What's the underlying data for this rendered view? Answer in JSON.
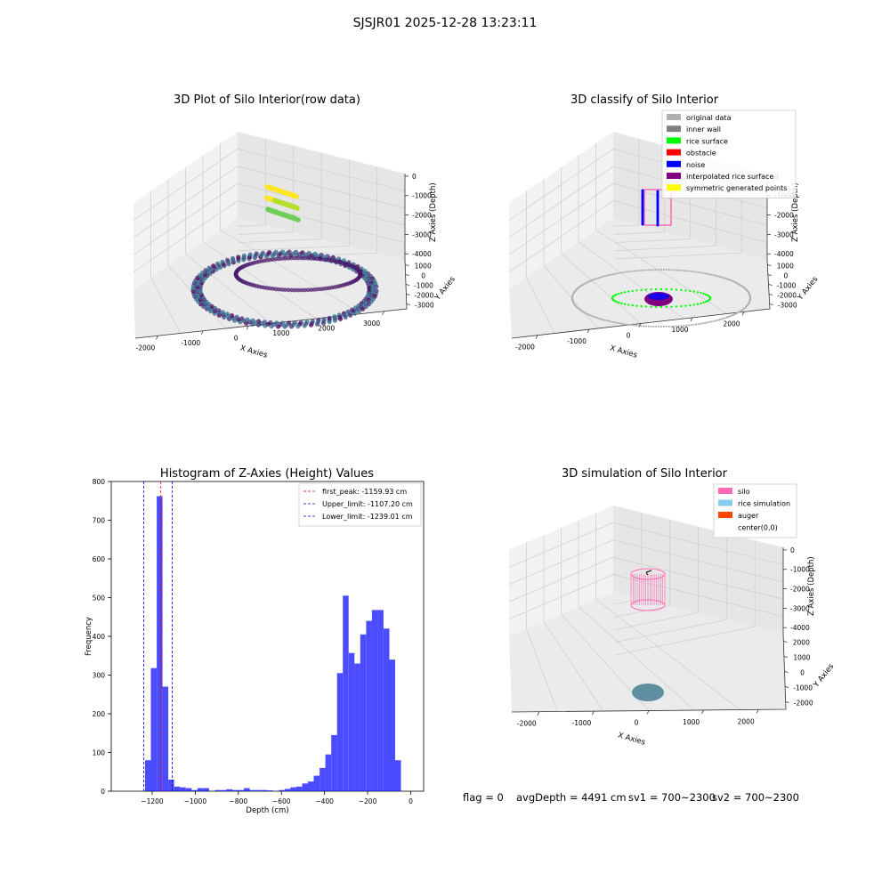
{
  "figure": {
    "suptitle": "SJSJR01 2025-12-28 13:23:11"
  },
  "status_bar": {
    "flag": "flag = 0",
    "avg_depth": "avgDepth = 4491 cm",
    "sv1": "sv1 = 700~2300",
    "sv2": "sv2 = 700~2300"
  },
  "colors": {
    "hist_bar": "#0000ff",
    "first_peak": "#ff0000",
    "limits": "#0000cc",
    "silo": "#ff69b4",
    "rice_simulation": "#87ceeb",
    "auger": "#ff4500",
    "original_data": "#b0b0b0",
    "inner_wall": "#808080",
    "rice_surface": "#00ff00",
    "obstacle": "#ff0000",
    "noise": "#0000ff",
    "interpolated_rice_surface": "#800080",
    "symmetric_generated_points": "#ffff00"
  },
  "chart_data": [
    {
      "type": "scatter",
      "projection": "3d",
      "title": "3D Plot of Silo Interior(row data)",
      "xlabel": "X Axies",
      "ylabel": "Y Axies",
      "zlabel": "Z Axies (Depth)",
      "x_ticks": [
        "-2000",
        "-1000",
        "0",
        "1000",
        "2000",
        "3000"
      ],
      "y_ticks": [
        "-3000",
        "-2000",
        "-1000",
        "0",
        "1000"
      ],
      "z_ticks": [
        "0",
        "-1000",
        "-2000",
        "-3000",
        "-4000"
      ],
      "colormap": "viridis",
      "grid": true
    },
    {
      "type": "scatter",
      "projection": "3d",
      "title": "3D classify of Silo Interior",
      "xlabel": "X Axies",
      "ylabel": "Y Axies",
      "zlabel": "Z Axies (Depth)",
      "x_ticks": [
        "-2000",
        "-1000",
        "0",
        "1000",
        "2000"
      ],
      "y_ticks": [
        "-3000",
        "-2000",
        "-1000",
        "0",
        "1000"
      ],
      "z_ticks": [
        "0",
        "-1000",
        "-2000",
        "-3000",
        "-4000"
      ],
      "legend_position": "top-right",
      "legend": [
        {
          "label": "original data",
          "color": "#b0b0b0"
        },
        {
          "label": "inner wall",
          "color": "#808080"
        },
        {
          "label": "rice surface",
          "color": "#00ff00"
        },
        {
          "label": "obstacle",
          "color": "#ff0000"
        },
        {
          "label": "noise",
          "color": "#0000ff"
        },
        {
          "label": "interpolated rice surface",
          "color": "#800080"
        },
        {
          "label": "symmetric generated points",
          "color": "#ffff00"
        }
      ],
      "grid": true
    },
    {
      "type": "bar",
      "title": "Histogram of Z-Axies (Height) Values",
      "xlabel": "Depth (cm)",
      "ylabel": "Frequency",
      "xlim": [
        -1390,
        60
      ],
      "ylim": [
        0,
        800
      ],
      "x_ticks": [
        -1200,
        -1000,
        -800,
        -600,
        -400,
        -200,
        0
      ],
      "y_ticks": [
        0,
        100,
        200,
        300,
        400,
        500,
        600,
        700,
        800
      ],
      "bin_width": 27,
      "bin_start": -1260,
      "values": [
        0,
        80,
        318,
        762,
        270,
        30,
        12,
        10,
        8,
        3,
        8,
        8,
        0,
        3,
        3,
        5,
        3,
        3,
        8,
        3,
        3,
        3,
        2,
        0,
        3,
        6,
        10,
        12,
        20,
        25,
        40,
        60,
        95,
        145,
        305,
        505,
        357,
        330,
        405,
        440,
        468,
        468,
        420,
        340,
        80
      ],
      "vlines": [
        {
          "label": "first_peak: -1159.93 cm",
          "x": -1159.93,
          "color": "#ff0000"
        },
        {
          "label": "Upper_limit: -1107.20 cm",
          "x": -1107.2,
          "color": "#0000cc"
        },
        {
          "label": "Lower_limit: -1239.01 cm",
          "x": -1239.01,
          "color": "#0000cc"
        }
      ],
      "legend_position": "top-right"
    },
    {
      "type": "scatter",
      "projection": "3d",
      "title": "3D simulation of Silo Interior",
      "xlabel": "X Axies",
      "ylabel": "Y Axies",
      "zlabel": "Z Axies (Depth)",
      "x_ticks": [
        "-2000",
        "-1000",
        "0",
        "1000",
        "2000"
      ],
      "y_ticks": [
        "-2000",
        "-1000",
        "0",
        "1000",
        "2000"
      ],
      "z_ticks": [
        "0",
        "-1000",
        "-2000",
        "-3000",
        "-4000"
      ],
      "legend_position": "top-right",
      "legend": [
        {
          "label": "silo",
          "color": "#ff69b4"
        },
        {
          "label": "rice simulation",
          "color": "#87ceeb"
        },
        {
          "label": "auger",
          "color": "#ff4500"
        },
        {
          "label": "center(0,0)",
          "color": "#000000"
        }
      ],
      "grid": true
    }
  ]
}
